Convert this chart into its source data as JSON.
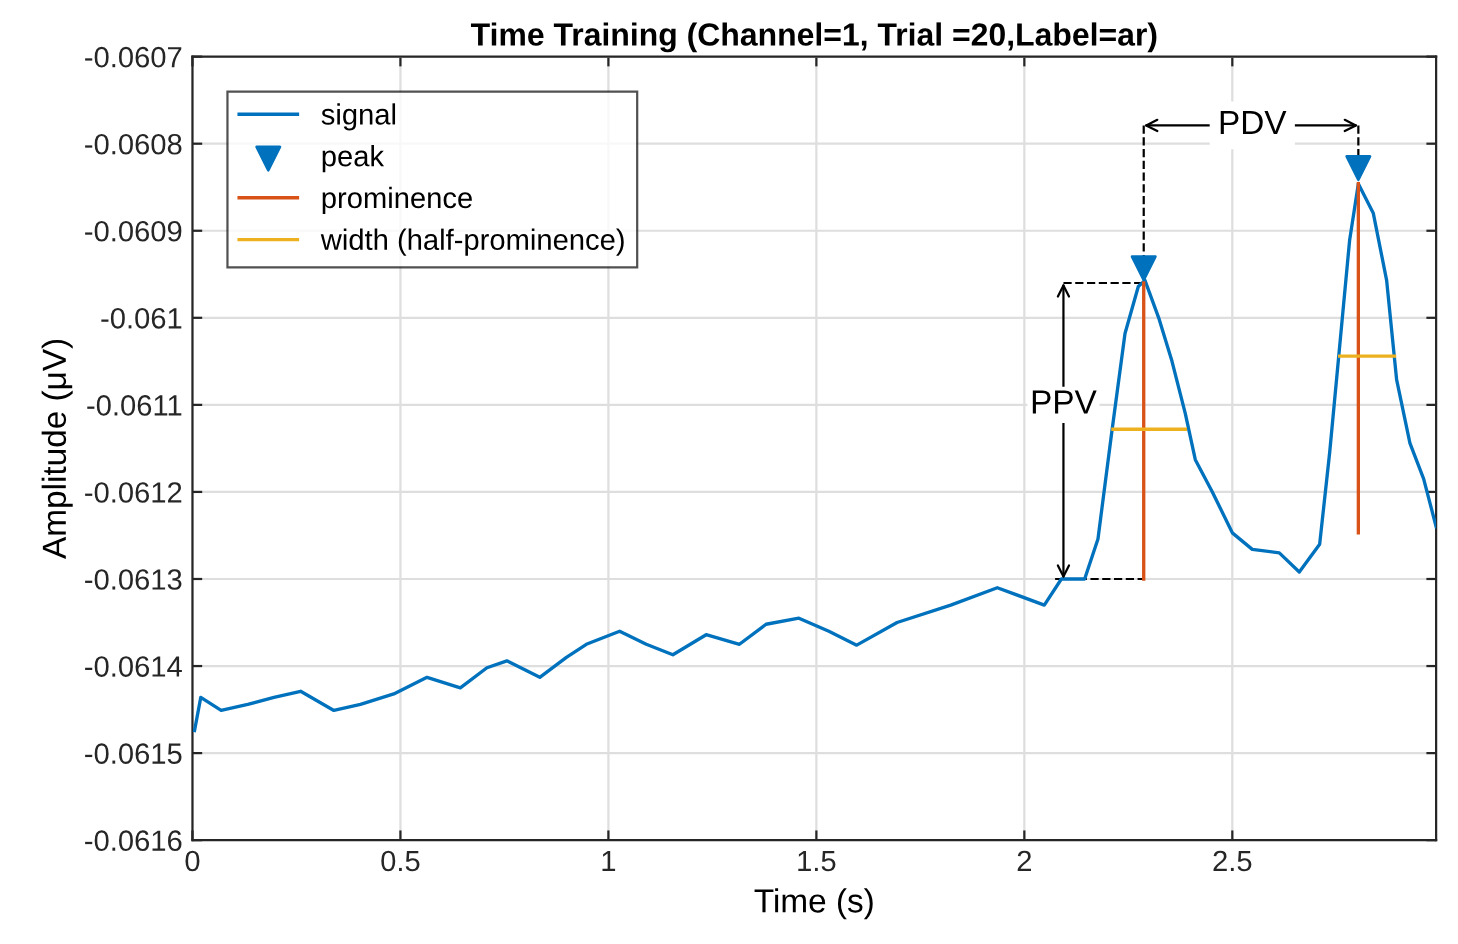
{
  "chart_data": {
    "type": "line",
    "title": "Time Training (Channel=1, Trial =20,Label=ar)",
    "xlabel": "Time (s)",
    "ylabel": "Amplitude (μV)",
    "xlim": [
      0,
      2.99
    ],
    "xticks": [
      0,
      0.5,
      1,
      1.5,
      2,
      2.5
    ],
    "ylim": [
      -0.0616,
      -0.0607
    ],
    "yticks": [
      -0.0616,
      -0.0615,
      -0.0614,
      -0.0613,
      -0.0612,
      -0.0611,
      -0.061,
      -0.0609,
      -0.0608,
      -0.0607
    ],
    "grid": true,
    "legend": "top left",
    "series": [
      {
        "name": "signal",
        "color": "#0072bd",
        "x": [
          0.005,
          0.02,
          0.069,
          0.133,
          0.196,
          0.26,
          0.34,
          0.404,
          0.484,
          0.564,
          0.644,
          0.708,
          0.756,
          0.835,
          0.899,
          0.947,
          1.027,
          1.091,
          1.155,
          1.235,
          1.315,
          1.379,
          1.458,
          1.53,
          1.597,
          1.694,
          1.823,
          1.935,
          2.048,
          2.089,
          2.145,
          2.177,
          2.21,
          2.242,
          2.274,
          2.29,
          2.323,
          2.355,
          2.387,
          2.411,
          2.452,
          2.5,
          2.548,
          2.613,
          2.661,
          2.71,
          2.734,
          2.758,
          2.782,
          2.803,
          2.839,
          2.871,
          2.895,
          2.927,
          2.96,
          2.99
        ],
        "values": [
          -0.061474,
          -0.061436,
          -0.061451,
          -0.061444,
          -0.061436,
          -0.061429,
          -0.061451,
          -0.061444,
          -0.061432,
          -0.061413,
          -0.061425,
          -0.061402,
          -0.061394,
          -0.061413,
          -0.06139,
          -0.061375,
          -0.06136,
          -0.061375,
          -0.061387,
          -0.061364,
          -0.061375,
          -0.061352,
          -0.061345,
          -0.06136,
          -0.061376,
          -0.06135,
          -0.06133,
          -0.06131,
          -0.06133,
          -0.0613,
          -0.0613,
          -0.061254,
          -0.061132,
          -0.061018,
          -0.060964,
          -0.060957,
          -0.061,
          -0.06105,
          -0.06111,
          -0.061163,
          -0.0612,
          -0.061247,
          -0.061266,
          -0.06127,
          -0.061292,
          -0.06126,
          -0.061155,
          -0.061033,
          -0.060911,
          -0.060846,
          -0.06088,
          -0.060957,
          -0.061071,
          -0.061144,
          -0.061185,
          -0.06124
        ]
      },
      {
        "name": "peak",
        "type": "scatter",
        "marker": "triangle",
        "color": "#0072bd",
        "x": [
          2.287,
          2.803
        ],
        "values": [
          -0.060943,
          -0.060828
        ]
      },
      {
        "name": "prominence",
        "type": "line",
        "color": "#d95319",
        "x": [
          2.287,
          2.287,
          2.5,
          2.803,
          2.803
        ],
        "values": [
          -0.06096,
          -0.0613,
          null,
          -0.060846,
          -0.061247
        ]
      },
      {
        "name": "width (half-prominence)",
        "type": "line",
        "color": "#edb120",
        "x": [
          2.213,
          2.387,
          2.5,
          2.758,
          2.89
        ],
        "values": [
          -0.061128,
          -0.061128,
          null,
          -0.061044,
          -0.061044
        ]
      }
    ],
    "annotations": [
      {
        "text": "PPV",
        "x": 2.094,
        "y": -0.0611
      },
      {
        "text": "PDV",
        "x": 2.548,
        "y": -0.060779
      }
    ]
  }
}
